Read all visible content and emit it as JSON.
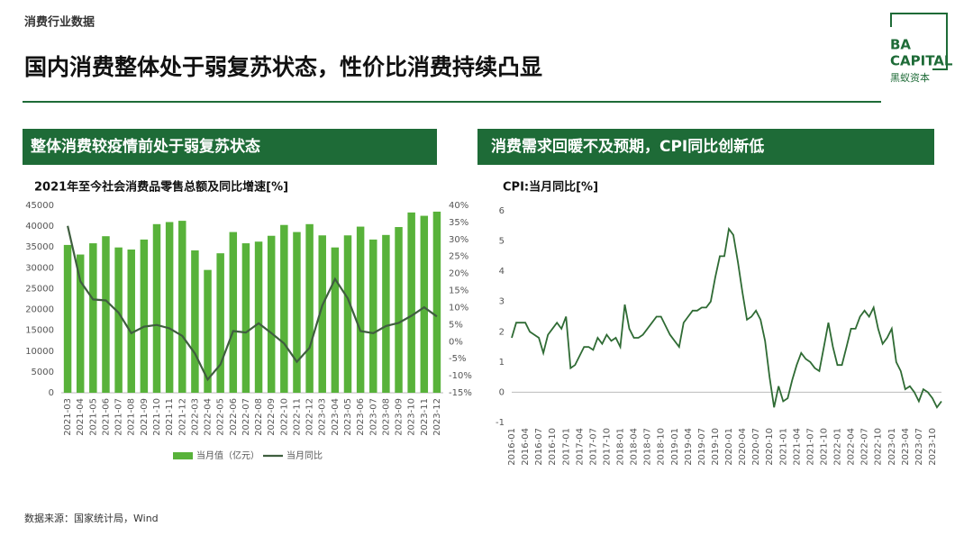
{
  "header": "消费行业数据",
  "title": "国内消费整体处于弱复苏状态，性价比消费持续凸显",
  "logo": {
    "line1": "BA",
    "line2": "CAPITAL",
    "line3": "黑蚁资本"
  },
  "source": "数据来源：国家统计局，Wind",
  "chart_data": [
    {
      "type": "bar",
      "panel": "整体消费较疫情前处于弱复苏状态",
      "title": "2021年至今社会消费品零售总额及同比增速[%]",
      "categories": [
        "2021-03",
        "2021-04",
        "2021-05",
        "2021-06",
        "2021-07",
        "2021-08",
        "2021-09",
        "2021-10",
        "2021-11",
        "2021-12",
        "2022-03",
        "2022-04",
        "2022-05",
        "2022-06",
        "2022-07",
        "2022-08",
        "2022-09",
        "2022-10",
        "2022-11",
        "2022-12",
        "2023-03",
        "2023-04",
        "2023-05",
        "2023-06",
        "2023-07",
        "2023-08",
        "2023-09",
        "2023-10",
        "2023-11",
        "2023-12"
      ],
      "series": [
        {
          "name": "当月值（亿元）",
          "color": "#58b23a",
          "values": [
            35500,
            33200,
            35900,
            37600,
            34900,
            34400,
            36800,
            40500,
            41000,
            41300,
            34200,
            29500,
            33500,
            38600,
            35900,
            36300,
            37700,
            40300,
            38600,
            40500,
            37800,
            34900,
            37800,
            39900,
            36800,
            37900,
            39800,
            43300,
            42500,
            43500
          ]
        },
        {
          "name": "当月同比",
          "color": "#3f5e3f",
          "axis": "y2",
          "values": [
            34,
            17.7,
            12.4,
            12.1,
            8.5,
            2.5,
            4.4,
            4.9,
            3.9,
            1.7,
            -3.5,
            -11.1,
            -6.7,
            3.1,
            2.7,
            5.4,
            2.5,
            -0.5,
            -5.9,
            -1.8,
            10.6,
            18.4,
            12.7,
            3.1,
            2.5,
            4.6,
            5.5,
            7.6,
            10.1,
            7.4
          ]
        }
      ],
      "ylim": [
        0,
        45000
      ],
      "yticks": [
        0,
        5000,
        10000,
        15000,
        20000,
        25000,
        30000,
        35000,
        40000,
        45000
      ],
      "y2lim": [
        -15,
        40
      ],
      "y2ticks": [
        {
          "value": -15,
          "label": "-15%"
        },
        {
          "value": -10,
          "label": "-10%"
        },
        {
          "value": -5,
          "label": "-5%"
        },
        {
          "value": 0,
          "label": "0%"
        },
        {
          "value": 5,
          "label": "5%"
        },
        {
          "value": 10,
          "label": "10%"
        },
        {
          "value": 15,
          "label": "15%"
        },
        {
          "value": 20,
          "label": "20%"
        },
        {
          "value": 25,
          "label": "25%"
        },
        {
          "value": 30,
          "label": "30%"
        },
        {
          "value": 35,
          "label": "35%"
        },
        {
          "value": 40,
          "label": "40%"
        }
      ],
      "legend": "bottom"
    },
    {
      "type": "line",
      "panel": "消费需求回暖不及预期，CPI同比创新低",
      "title": "CPI:当月同比[%]",
      "categories": [
        "2016-01",
        null,
        null,
        "2016-04",
        null,
        null,
        "2016-07",
        null,
        null,
        "2016-10",
        null,
        null,
        "2017-01",
        null,
        null,
        "2017-04",
        null,
        null,
        "2017-07",
        null,
        null,
        "2017-10",
        null,
        null,
        "2018-01",
        null,
        null,
        "2018-04",
        null,
        null,
        "2018-07",
        null,
        null,
        "2018-10",
        null,
        null,
        "2019-01",
        null,
        null,
        "2019-04",
        null,
        null,
        "2019-07",
        null,
        null,
        "2019-10",
        null,
        null,
        "2020-01",
        null,
        null,
        "2020-04",
        null,
        null,
        "2020-07",
        null,
        null,
        "2020-10",
        null,
        null,
        "2021-01",
        null,
        null,
        "2021-04",
        null,
        null,
        "2021-07",
        null,
        null,
        "2021-10",
        null,
        null,
        "2022-01",
        null,
        null,
        "2022-04",
        null,
        null,
        "2022-07",
        null,
        null,
        "2022-10",
        null,
        null,
        "2023-01",
        null,
        null,
        "2023-04",
        null,
        null,
        "2023-07",
        null,
        null,
        "2023-10",
        null,
        null
      ],
      "series": [
        {
          "name": "CPI:当月同比",
          "color": "#2f6b34",
          "values": [
            1.8,
            2.3,
            2.3,
            2.3,
            2.0,
            1.9,
            1.8,
            1.3,
            1.9,
            2.1,
            2.3,
            2.1,
            2.5,
            0.8,
            0.9,
            1.2,
            1.5,
            1.5,
            1.4,
            1.8,
            1.6,
            1.9,
            1.7,
            1.8,
            1.5,
            2.9,
            2.1,
            1.8,
            1.8,
            1.9,
            2.1,
            2.3,
            2.5,
            2.5,
            2.2,
            1.9,
            1.7,
            1.5,
            2.3,
            2.5,
            2.7,
            2.7,
            2.8,
            2.8,
            3.0,
            3.8,
            4.5,
            4.5,
            5.4,
            5.2,
            4.3,
            3.3,
            2.4,
            2.5,
            2.7,
            2.4,
            1.7,
            0.5,
            -0.5,
            0.2,
            -0.3,
            -0.2,
            0.4,
            0.9,
            1.3,
            1.1,
            1.0,
            0.8,
            0.7,
            1.5,
            2.3,
            1.5,
            0.9,
            0.9,
            1.5,
            2.1,
            2.1,
            2.5,
            2.7,
            2.5,
            2.8,
            2.1,
            1.6,
            1.8,
            2.1,
            1.0,
            0.7,
            0.1,
            0.2,
            0.0,
            -0.3,
            0.1,
            0.0,
            -0.2,
            -0.5,
            -0.3
          ]
        }
      ],
      "ylim": [
        -1,
        6
      ],
      "yticks": [
        -1,
        0,
        1,
        2,
        3,
        4,
        5,
        6
      ]
    }
  ]
}
